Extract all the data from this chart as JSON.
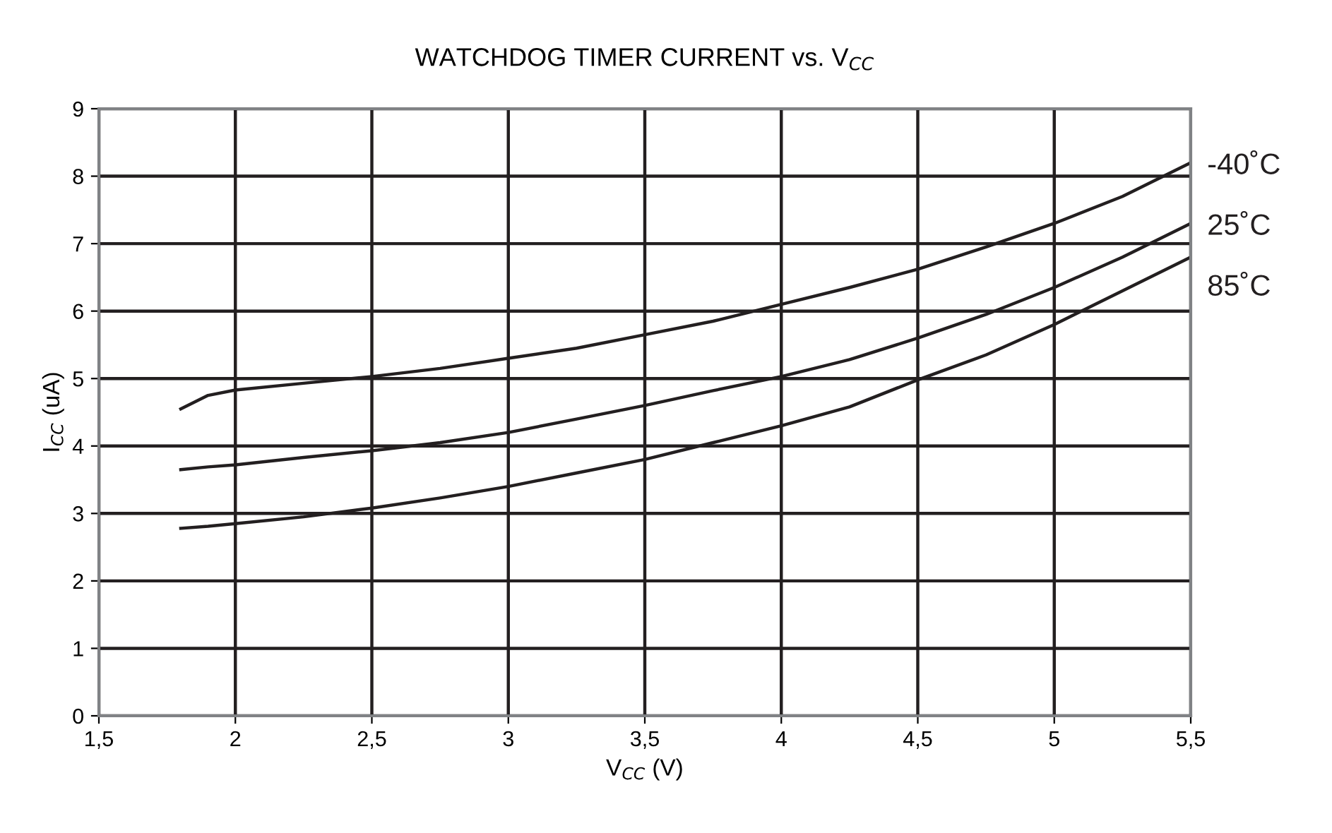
{
  "chart_data": {
    "type": "line",
    "title": "WATCHDOG TIMER CURRENT vs. V$_{CC}$",
    "xlabel": "V$_{CC}$ (V)",
    "ylabel": "I$_{CC}$ (uA)",
    "x": [
      1.8,
      1.9,
      2.0,
      2.25,
      2.5,
      2.75,
      3.0,
      3.25,
      3.5,
      3.75,
      4.0,
      4.25,
      4.5,
      4.75,
      5.0,
      5.25,
      5.5
    ],
    "series": [
      {
        "name": "-40˚C",
        "color": "#231f20",
        "values": [
          4.55,
          4.75,
          4.83,
          4.93,
          5.03,
          5.15,
          5.3,
          5.45,
          5.65,
          5.85,
          6.1,
          6.35,
          6.62,
          6.95,
          7.3,
          7.7,
          8.2
        ]
      },
      {
        "name": "25˚C",
        "color": "#231f20",
        "values": [
          3.65,
          3.69,
          3.72,
          3.83,
          3.93,
          4.05,
          4.2,
          4.4,
          4.6,
          4.82,
          5.03,
          5.28,
          5.6,
          5.95,
          6.35,
          6.8,
          7.3
        ]
      },
      {
        "name": "85˚C",
        "color": "#231f20",
        "values": [
          2.78,
          2.81,
          2.85,
          2.95,
          3.08,
          3.23,
          3.4,
          3.6,
          3.8,
          4.05,
          4.3,
          4.58,
          4.98,
          5.35,
          5.8,
          6.3,
          6.8
        ]
      }
    ],
    "xlim": [
      1.5,
      5.5
    ],
    "xticks": [
      {
        "value": 1.5,
        "label": "1,5"
      },
      2,
      {
        "value": 2.5,
        "label": "2,5"
      },
      3,
      {
        "value": 3.5,
        "label": "3,5"
      },
      4,
      {
        "value": 4.5,
        "label": "4,5"
      },
      5,
      {
        "value": 5.5,
        "label": "5,5"
      }
    ],
    "ylim": [
      0,
      9
    ],
    "yticks": [
      0,
      1,
      2,
      3,
      4,
      5,
      6,
      7,
      8,
      9
    ],
    "grid": true,
    "legend": false,
    "marker": "none",
    "line_style": "solid"
  }
}
